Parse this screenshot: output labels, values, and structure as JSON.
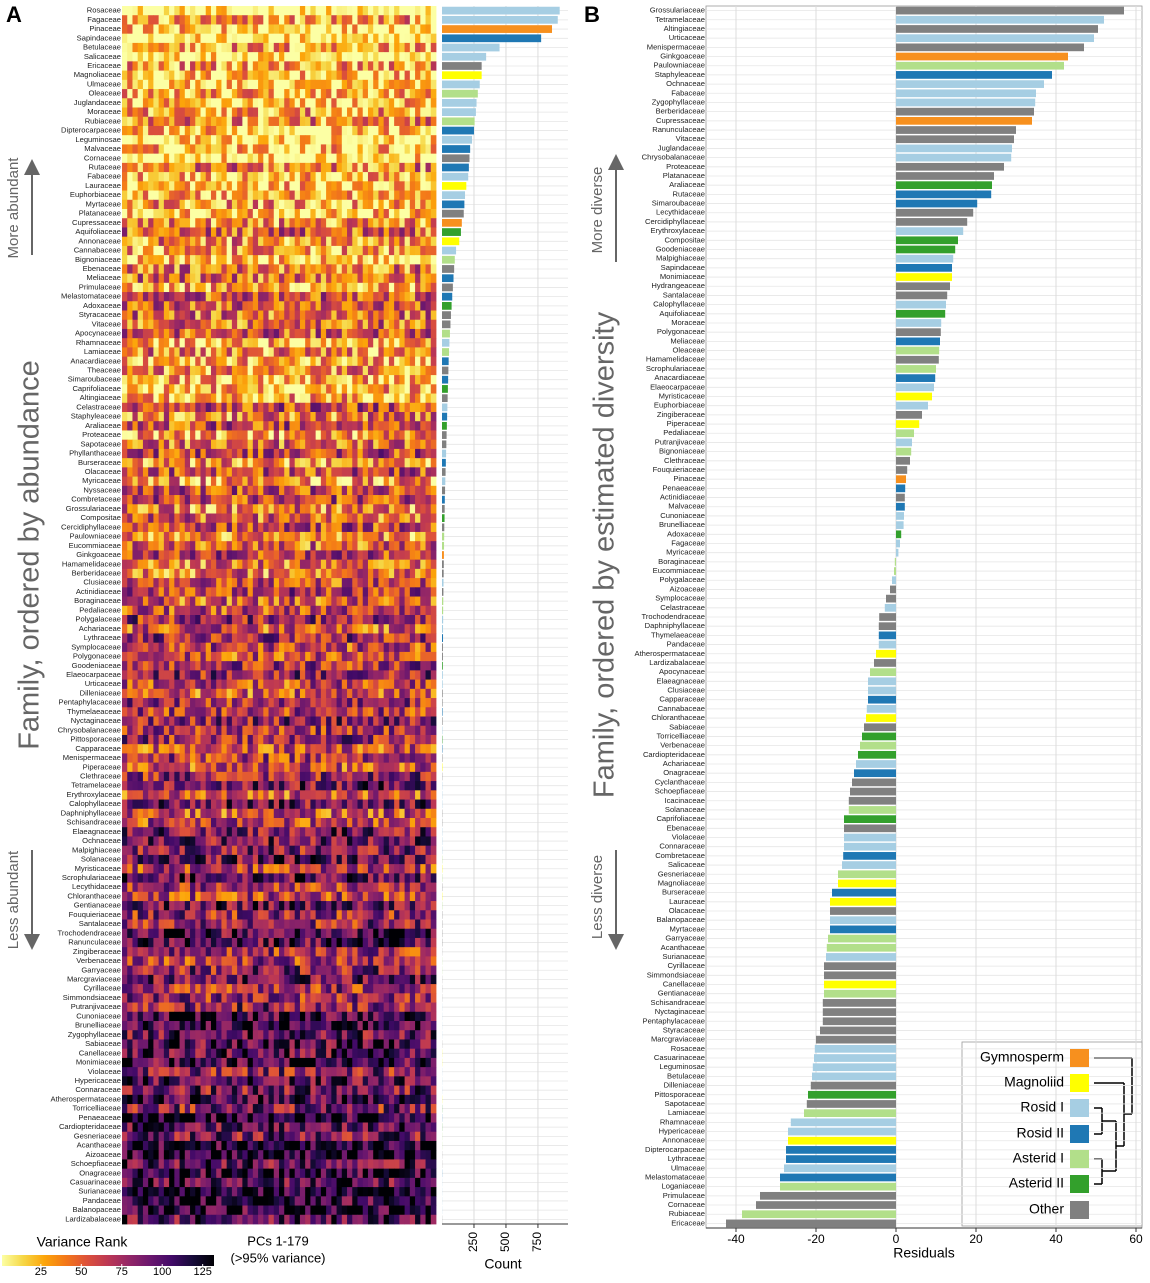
{
  "chart_data": [
    {
      "type": "bar",
      "panel": "A",
      "ylabel": "Family, ordered by abundance",
      "arrow_labels": [
        "More abundant",
        "Less abundant"
      ],
      "heatmap_label": "PCs 1-179",
      "xlabel": "Count",
      "categories": [
        "Rosaceae",
        "Fagaceae",
        "Pinaceae",
        "Sapindaceae",
        "Betulaceae",
        "Salicaceae",
        "Ericaceae",
        "Magnoliaceae",
        "Ulmaceae",
        "Oleaceae",
        "Juglandaceae",
        "Moraceae",
        "Rubiaceae",
        "Dipterocarpaceae",
        "Leguminosae",
        "Malvaceae",
        "Cornaceae",
        "Rutaceae",
        "Fabaceae",
        "Lauraceae",
        "Euphorbiaceae",
        "Myrtaceae",
        "Platanaceae",
        "Cupressaceae",
        "Aquifoliaceae",
        "Annonaceae",
        "Cannabaceae",
        "Bignoniaceae",
        "Ebenaceae",
        "Meliaceae",
        "Primulaceae",
        "Melastomataceae",
        "Adoxaceae",
        "Styracaceae",
        "Vitaceae",
        "Apocynaceae",
        "Rhamnaceae",
        "Lamiaceae",
        "Anacardiaceae",
        "Theaceae",
        "Simaroubaceae",
        "Caprifoliaceae",
        "Altingiaceae",
        "Celastraceae",
        "Staphyleaceae",
        "Araliaceae",
        "Proteaceae",
        "Sapotaceae",
        "Phyllanthaceae",
        "Burseraceae",
        "Olacaceae",
        "Myricaceae",
        "Nyssaceae",
        "Combretaceae",
        "Grossulariaceae",
        "Compositae",
        "Cercidiphyllaceae",
        "Paulowniaceae",
        "Eucommiaceae",
        "Ginkgoaceae",
        "Hamamelidaceae",
        "Berberidaceae",
        "Clusiaceae",
        "Actinidiaceae",
        "Boraginaceae",
        "Pedaliaceae",
        "Polygalaceae",
        "Achariaceae",
        "Lythraceae",
        "Symplocaceae",
        "Polygonaceae",
        "Goodeniaceae",
        "Elaeocarpaceae",
        "Urticaceae",
        "Dilleniaceae",
        "Pentaphylacaceae",
        "Thymelaeaceae",
        "Nyctaginaceae",
        "Chrysobalanaceae",
        "Pittosporaceae",
        "Capparaceae",
        "Menispermaceae",
        "Piperaceae",
        "Clethraceae",
        "Tetramelaceae",
        "Erythroxylaceae",
        "Calophyllaceae",
        "Daphniphyllaceae",
        "Schisandraceae",
        "Elaeagnaceae",
        "Ochnaceae",
        "Malpighiaceae",
        "Solanaceae",
        "Myristicaceae",
        "Scrophulariaceae",
        "Lecythidaceae",
        "Chloranthaceae",
        "Gentianaceae",
        "Fouquieriaceae",
        "Santalaceae",
        "Trochodendraceae",
        "Ranunculaceae",
        "Zingiberaceae",
        "Verbenaceae",
        "Garryaceae",
        "Marcgraviaceae",
        "Cyrillaceae",
        "Simmondsiaceae",
        "Putranjivaceae",
        "Cunoniaceae",
        "Brunelliaceae",
        "Zygophyllaceae",
        "Sabiaceae",
        "Canellaceae",
        "Monimiaceae",
        "Violaceae",
        "Hypericaceae",
        "Connaraceae",
        "Atherospermataceae",
        "Torricelliaceae",
        "Penaeaceae",
        "Cardiopteridaceae",
        "Gesneriaceae",
        "Acanthaceae",
        "Aizoaceae",
        "Schoepfiaceae",
        "Onagraceae",
        "Casuarinaceae",
        "Surianaceae",
        "Pandaceae",
        "Balanopaceae",
        "Lardizabalaceae"
      ],
      "values": [
        920,
        905,
        860,
        775,
        450,
        345,
        310,
        310,
        295,
        280,
        270,
        265,
        255,
        250,
        235,
        220,
        215,
        210,
        205,
        190,
        180,
        175,
        170,
        155,
        148,
        135,
        110,
        100,
        95,
        90,
        85,
        80,
        75,
        70,
        66,
        62,
        58,
        55,
        52,
        50,
        48,
        46,
        44,
        42,
        40,
        38,
        36,
        34,
        32,
        30,
        28,
        26,
        24,
        22,
        21,
        20,
        18,
        17,
        16,
        15,
        14,
        13,
        12,
        11,
        10,
        9,
        9,
        8,
        8,
        7,
        7,
        6,
        6,
        5,
        5,
        4,
        4,
        4,
        3,
        3,
        3,
        3,
        3,
        2,
        2,
        2,
        2,
        2,
        2,
        2,
        2,
        2,
        2,
        2,
        2,
        2,
        2,
        2,
        2,
        2,
        2,
        2,
        1,
        1,
        1,
        1,
        1,
        1,
        1,
        1,
        1,
        1,
        1,
        1,
        1,
        1,
        1,
        1,
        1,
        1,
        1,
        1,
        1,
        1,
        1,
        1,
        1,
        1,
        1,
        1,
        1,
        1
      ],
      "groups": [
        2,
        2,
        0,
        3,
        2,
        2,
        6,
        1,
        2,
        4,
        2,
        2,
        4,
        3,
        2,
        3,
        6,
        3,
        2,
        1,
        2,
        3,
        6,
        0,
        5,
        1,
        2,
        4,
        6,
        3,
        6,
        3,
        5,
        6,
        6,
        4,
        2,
        4,
        3,
        6,
        3,
        5,
        6,
        2,
        3,
        5,
        6,
        6,
        2,
        3,
        6,
        2,
        6,
        3,
        6,
        5,
        6,
        4,
        4,
        0,
        6,
        6,
        2,
        6,
        4,
        4,
        2,
        2,
        3,
        6,
        6,
        5,
        2,
        2,
        6,
        6,
        3,
        6,
        2,
        5,
        3,
        6,
        1,
        6,
        2,
        2,
        2,
        6,
        6,
        2,
        2,
        2,
        4,
        1,
        4,
        6,
        1,
        4,
        6,
        6,
        6,
        6,
        6,
        4,
        4,
        6,
        6,
        6,
        2,
        2,
        2,
        2,
        6,
        1,
        1,
        2,
        2,
        2,
        1,
        5,
        3,
        5,
        4,
        4,
        6,
        6,
        3,
        2,
        2,
        2,
        2,
        6
      ],
      "xlim": [
        0,
        985
      ],
      "xticks": [
        250,
        500,
        750
      ],
      "colorbar": {
        "title": "Variance Rank",
        "note": "(>95% variance)",
        "lim": [
          1,
          132
        ],
        "ticks": [
          25,
          50,
          75,
          100,
          125
        ],
        "colors": [
          "#fcffa4",
          "#f6d746",
          "#fca50a",
          "#f37819",
          "#dd513a",
          "#bc3754",
          "#932667",
          "#6a176e",
          "#420a68",
          "#160b39",
          "#000004"
        ]
      }
    },
    {
      "type": "bar",
      "panel": "B",
      "ylabel": "Family, ordered by estimated diversity",
      "arrow_labels": [
        "More diverse",
        "Less diverse"
      ],
      "xlabel": "Residuals",
      "categories": [
        "Grossulariaceae",
        "Tetramelaceae",
        "Altingiaceae",
        "Urticaceae",
        "Menispermaceae",
        "Ginkgoaceae",
        "Paulowniaceae",
        "Staphyleaceae",
        "Ochnaceae",
        "Fabaceae",
        "Zygophyllaceae",
        "Berberidaceae",
        "Cupressaceae",
        "Ranunculaceae",
        "Vitaceae",
        "Juglandaceae",
        "Chrysobalanaceae",
        "Proteaceae",
        "Platanaceae",
        "Araliaceae",
        "Rutaceae",
        "Simaroubaceae",
        "Lecythidaceae",
        "Cercidiphyllaceae",
        "Erythroxylaceae",
        "Compositae",
        "Goodeniaceae",
        "Malpighiaceae",
        "Sapindaceae",
        "Monimiaceae",
        "Hydrangeaceae",
        "Santalaceae",
        "Calophyllaceae",
        "Aquifoliaceae",
        "Moraceae",
        "Polygonaceae",
        "Meliaceae",
        "Oleaceae",
        "Hamamelidaceae",
        "Scrophulariaceae",
        "Anacardiaceae",
        "Elaeocarpaceae",
        "Myristicaceae",
        "Euphorbiaceae",
        "Zingiberaceae",
        "Piperaceae",
        "Pedaliaceae",
        "Putranjivaceae",
        "Bignoniaceae",
        "Clethraceae",
        "Fouquieriaceae",
        "Pinaceae",
        "Penaeaceae",
        "Actinidiaceae",
        "Malvaceae",
        "Cunoniaceae",
        "Brunelliaceae",
        "Adoxaceae",
        "Fagaceae",
        "Myricaceae",
        "Boraginaceae",
        "Eucommiaceae",
        "Polygalaceae",
        "Aizoaceae",
        "Symplocaceae",
        "Celastraceae",
        "Trochodendraceae",
        "Daphniphyllaceae",
        "Thymelaeaceae",
        "Pandaceae",
        "Atherospermataceae",
        "Lardizabalaceae",
        "Apocynaceae",
        "Elaeagnaceae",
        "Clusiaceae",
        "Capparaceae",
        "Cannabaceae",
        "Chloranthaceae",
        "Sabiaceae",
        "Torricelliaceae",
        "Verbenaceae",
        "Cardiopteridaceae",
        "Achariaceae",
        "Onagraceae",
        "Cyclanthaceae",
        "Schoepfiaceae",
        "Icacinaceae",
        "Solanaceae",
        "Caprifoliaceae",
        "Ebenaceae",
        "Violaceae",
        "Connaraceae",
        "Combretaceae",
        "Salicaceae",
        "Gesneriaceae",
        "Magnoliaceae",
        "Burseraceae",
        "Lauraceae",
        "Olacaceae",
        "Balanopaceae",
        "Myrtaceae",
        "Garryaceae",
        "Acanthaceae",
        "Surianaceae",
        "Cyrillaceae",
        "Simmondsiaceae",
        "Canellaceae",
        "Gentianaceae",
        "Schisandraceae",
        "Nyctaginaceae",
        "Pentaphylacaceae",
        "Styracaceae",
        "Marcgraviaceae",
        "Rosaceae",
        "Casuarinaceae",
        "Leguminosae",
        "Betulaceae",
        "Dilleniaceae",
        "Pittosporaceae",
        "Sapotaceae",
        "Lamiaceae",
        "Rhamnaceae",
        "Hypericaceae",
        "Annonaceae",
        "Dipterocarpaceae",
        "Lythraceae",
        "Ulmaceae",
        "Melastomataceae",
        "Loganiaceae",
        "Primulaceae",
        "Cornaceae",
        "Rubiaceae",
        "Ericaceae"
      ],
      "values": [
        57,
        52,
        50.5,
        49.5,
        47,
        43,
        42,
        39,
        37,
        35,
        34.8,
        34.5,
        34,
        30,
        29.5,
        29,
        28.8,
        27,
        24.5,
        24,
        23.8,
        20.3,
        19.3,
        17.8,
        16.8,
        15.5,
        14.8,
        14.3,
        14,
        14,
        13.5,
        12.8,
        12.5,
        12.3,
        11.3,
        11.2,
        11,
        10.8,
        10.7,
        10,
        9.8,
        9.5,
        9,
        8,
        6.5,
        5.8,
        4.5,
        4,
        3.8,
        3.5,
        2.8,
        2.5,
        2.3,
        2.2,
        2.2,
        2,
        1.9,
        1.3,
        1,
        0.6,
        -0.3,
        -0.5,
        -1,
        -1.5,
        -2.5,
        -2.8,
        -4.2,
        -4.3,
        -4.3,
        -4.3,
        -5,
        -5.5,
        -6.5,
        -7,
        -7,
        -7,
        -7.3,
        -7.5,
        -8,
        -8.5,
        -9,
        -9.5,
        -10,
        -10.5,
        -11,
        -11.5,
        -11.8,
        -11.8,
        -13,
        -13,
        -13,
        -13,
        -13.2,
        -13.5,
        -14.5,
        -14.5,
        -16,
        -16.5,
        -16.5,
        -16.5,
        -16.5,
        -17,
        -17.3,
        -17.5,
        -18,
        -18,
        -18,
        -18,
        -18.3,
        -18.3,
        -18.3,
        -19,
        -20,
        -20.3,
        -20.5,
        -20.8,
        -21,
        -21.3,
        -22,
        -22.3,
        -23,
        -26.3,
        -27,
        -27,
        -27.5,
        -27.5,
        -28,
        -29,
        -29,
        -34,
        -35,
        -38.5,
        -42.5
      ],
      "groups": [
        6,
        2,
        6,
        2,
        6,
        0,
        4,
        3,
        2,
        2,
        2,
        6,
        0,
        6,
        6,
        2,
        2,
        6,
        6,
        5,
        3,
        3,
        6,
        6,
        2,
        5,
        5,
        2,
        3,
        1,
        6,
        6,
        2,
        5,
        2,
        6,
        3,
        4,
        6,
        4,
        3,
        2,
        1,
        2,
        6,
        1,
        4,
        2,
        4,
        6,
        6,
        0,
        3,
        6,
        3,
        2,
        2,
        5,
        2,
        2,
        4,
        4,
        2,
        6,
        6,
        2,
        6,
        6,
        3,
        2,
        1,
        6,
        4,
        2,
        2,
        3,
        2,
        1,
        6,
        5,
        4,
        5,
        2,
        3,
        6,
        6,
        6,
        4,
        5,
        6,
        2,
        2,
        3,
        2,
        4,
        1,
        3,
        1,
        6,
        2,
        3,
        4,
        4,
        2,
        6,
        6,
        1,
        4,
        6,
        6,
        6,
        6,
        6,
        2,
        2,
        2,
        2,
        6,
        5,
        6,
        4,
        2,
        2,
        1,
        3,
        3,
        2,
        3,
        4,
        6,
        6,
        4,
        6
      ],
      "xlim": [
        -47.5,
        61.5
      ],
      "xticks": [
        -40,
        -20,
        0,
        20,
        40,
        60
      ],
      "legend": [
        {
          "name": "Gymnosperm",
          "color": "#f7901e"
        },
        {
          "name": "Magnoliid",
          "color": "#ffff00"
        },
        {
          "name": "Rosid I",
          "color": "#a6cee3"
        },
        {
          "name": "Rosid II",
          "color": "#1f78b4"
        },
        {
          "name": "Asterid I",
          "color": "#b2df8a"
        },
        {
          "name": "Asterid II",
          "color": "#33a02c"
        },
        {
          "name": "Other",
          "color": "#808080"
        }
      ]
    }
  ]
}
